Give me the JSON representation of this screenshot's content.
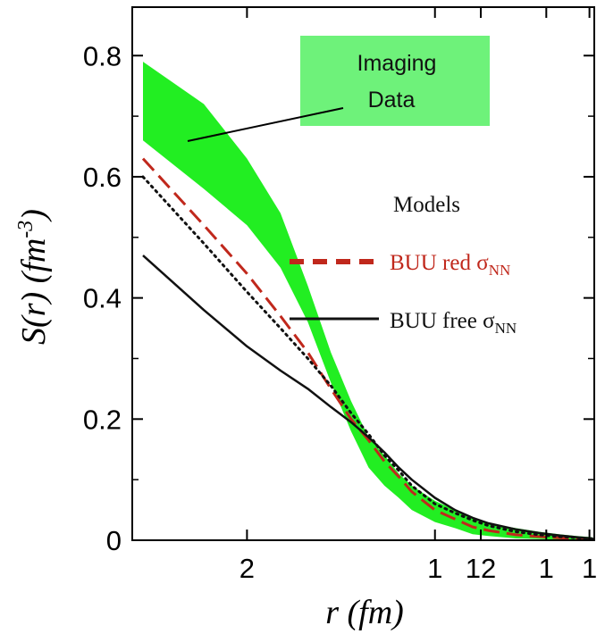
{
  "chart_data": {
    "type": "line",
    "xlabel": "r (fm)",
    "ylabel_main": "S(r) (fm",
    "ylabel_sup": "-3",
    "ylabel_close": ")",
    "xlim": [
      1.0,
      20.0
    ],
    "ylim": [
      0.0,
      0.88
    ],
    "x_ticks": [
      {
        "value": 2,
        "label": "2"
      },
      {
        "value": 7,
        "label": "1"
      },
      {
        "value": 9.5,
        "label": "12"
      },
      {
        "value": 14.7,
        "label": "1"
      },
      {
        "value": 19.6,
        "label": "1"
      }
    ],
    "y_ticks": [
      {
        "value": 0.0,
        "label": "0"
      },
      {
        "value": 0.2,
        "label": "0.2"
      },
      {
        "value": 0.4,
        "label": "0.4"
      },
      {
        "value": 0.6,
        "label": "0.6"
      },
      {
        "value": 0.8,
        "label": "0.8"
      }
    ],
    "annotation": {
      "line1": "Imaging",
      "line2": "Data",
      "color": "#6ef27a"
    },
    "legend": {
      "title": "Models",
      "red_label": "BUU red σ",
      "red_sub": "NN",
      "free_label": "BUU free σ",
      "free_sub": "NN"
    },
    "band": {
      "name": "Imaging Data",
      "color": "#22ee22",
      "x": [
        1.0,
        1.5,
        2.0,
        2.5,
        3.0,
        3.5,
        4.0,
        4.5,
        5.0,
        5.5,
        6.0,
        7.0,
        8.0,
        9.0,
        10.0,
        12.0,
        14.0,
        16.0,
        18.0,
        20.0
      ],
      "lower": [
        0.66,
        0.58,
        0.52,
        0.45,
        0.36,
        0.26,
        0.18,
        0.12,
        0.09,
        0.07,
        0.05,
        0.03,
        0.02,
        0.01,
        0.007,
        0.003,
        0.002,
        0.001,
        0.001,
        0.0
      ],
      "upper": [
        0.79,
        0.72,
        0.63,
        0.54,
        0.42,
        0.31,
        0.23,
        0.17,
        0.14,
        0.11,
        0.09,
        0.065,
        0.05,
        0.037,
        0.028,
        0.02,
        0.014,
        0.01,
        0.007,
        0.005
      ]
    },
    "series": [
      {
        "name": "BUU red σNN",
        "color": "#c0281c",
        "style": "dashed",
        "x": [
          1.0,
          1.5,
          2.0,
          2.5,
          3.0,
          3.5,
          4.0,
          4.5,
          5.0,
          5.5,
          6.0,
          7.0,
          8.0,
          9.0,
          10.0,
          12.0,
          14.0,
          16.0,
          18.0,
          20.0
        ],
        "values": [
          0.63,
          0.52,
          0.44,
          0.37,
          0.31,
          0.25,
          0.2,
          0.165,
          0.13,
          0.105,
          0.08,
          0.05,
          0.035,
          0.022,
          0.016,
          0.009,
          0.006,
          0.004,
          0.002,
          0.001
        ]
      },
      {
        "name": "BUU free σNN",
        "color": "#111111",
        "style": "solid",
        "x": [
          1.0,
          1.5,
          2.0,
          2.5,
          3.0,
          3.5,
          4.0,
          4.5,
          5.0,
          5.5,
          6.0,
          7.0,
          8.0,
          9.0,
          10.0,
          12.0,
          14.0,
          16.0,
          18.0,
          20.0
        ],
        "values": [
          0.47,
          0.38,
          0.32,
          0.28,
          0.25,
          0.22,
          0.195,
          0.17,
          0.145,
          0.12,
          0.1,
          0.07,
          0.05,
          0.037,
          0.028,
          0.018,
          0.012,
          0.008,
          0.005,
          0.003
        ]
      },
      {
        "name": "",
        "color": "#111111",
        "style": "dotted",
        "x": [
          1.0,
          1.5,
          2.0,
          2.5,
          3.0,
          3.5,
          4.0,
          4.5,
          5.0,
          5.5,
          6.0,
          7.0,
          8.0,
          9.0,
          10.0,
          12.0,
          14.0,
          16.0,
          18.0,
          20.0
        ],
        "values": [
          0.6,
          0.49,
          0.41,
          0.35,
          0.3,
          0.255,
          0.21,
          0.175,
          0.14,
          0.115,
          0.09,
          0.06,
          0.045,
          0.033,
          0.024,
          0.014,
          0.009,
          0.006,
          0.004,
          0.002
        ]
      }
    ]
  }
}
